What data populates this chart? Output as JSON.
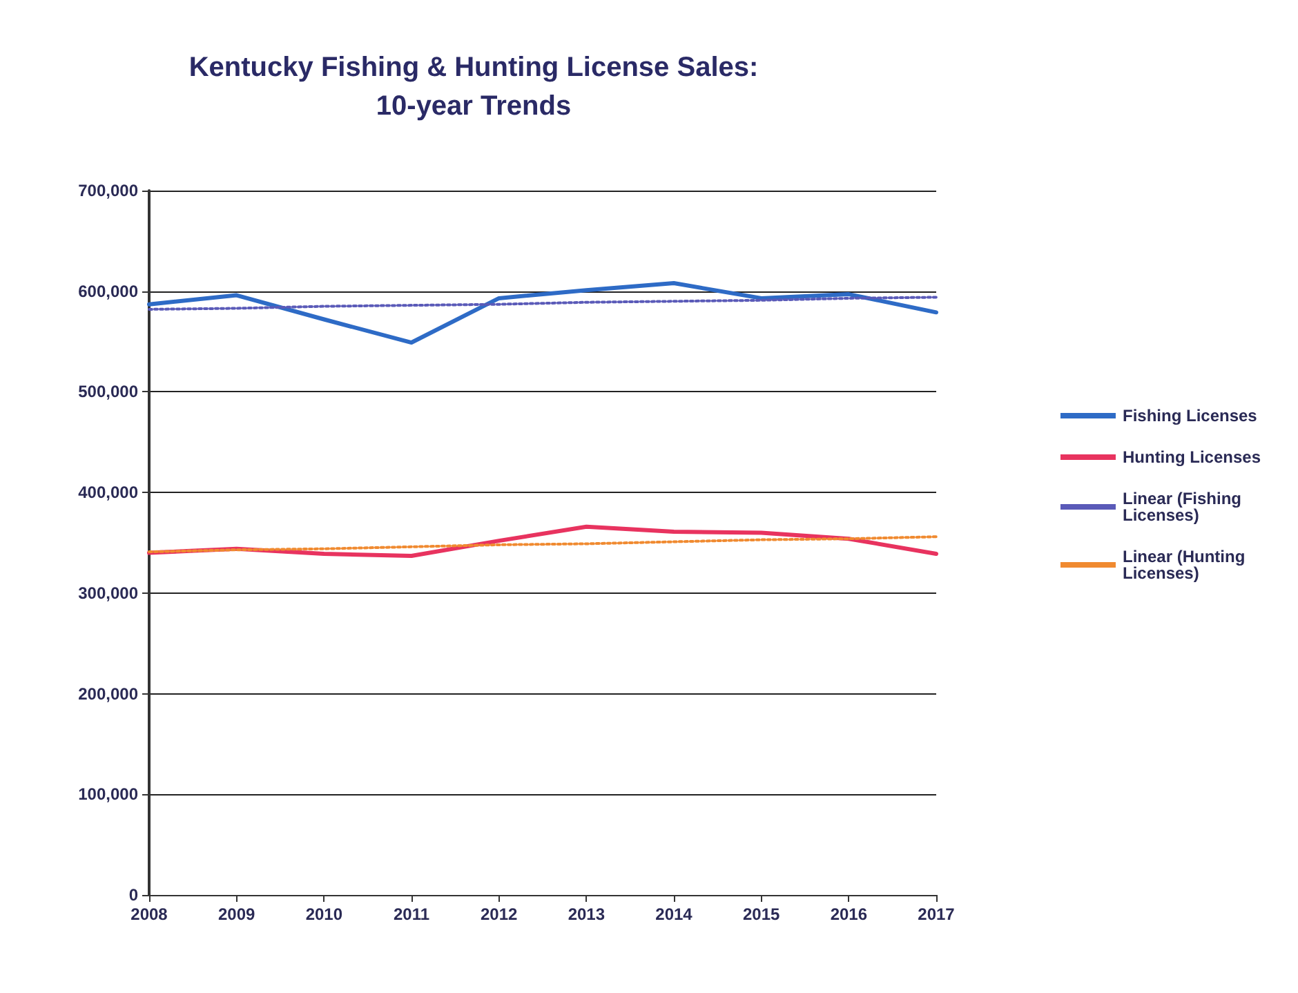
{
  "chart_data": {
    "type": "line",
    "title": "Kentucky Fishing & Hunting License Sales:\n10-year Trends",
    "x": [
      2008,
      2009,
      2010,
      2011,
      2012,
      2013,
      2014,
      2015,
      2016,
      2017
    ],
    "series": [
      {
        "name": "Fishing Licenses",
        "color": "#2e6bc6",
        "values": [
          587000,
          596000,
          572000,
          549000,
          593000,
          601000,
          608000,
          593000,
          597000,
          579000
        ]
      },
      {
        "name": "Hunting Licenses",
        "color": "#e8335f",
        "values": [
          340000,
          344000,
          339000,
          337000,
          352000,
          366000,
          361000,
          360000,
          354000,
          339000
        ]
      },
      {
        "name": "Linear (Fishing Licenses)",
        "color": "#5a5ab8",
        "line_style": "dotted",
        "values": [
          582000,
          583000,
          585000,
          586000,
          587000,
          589000,
          590000,
          591000,
          593000,
          594000
        ]
      },
      {
        "name": "Linear (Hunting Licenses)",
        "color": "#f08a30",
        "line_style": "dotted",
        "values": [
          341000,
          343000,
          344000,
          346000,
          348000,
          349000,
          351000,
          353000,
          354000,
          356000
        ]
      }
    ],
    "xlim": [
      2008,
      2017
    ],
    "xticks": [
      2008,
      2009,
      2010,
      2011,
      2012,
      2013,
      2014,
      2015,
      2016,
      2017
    ],
    "ylim": [
      0,
      700000
    ],
    "yticks": [
      0,
      {
        "value": 100000,
        "label": "100,000"
      },
      {
        "value": 200000,
        "label": "200,000"
      },
      {
        "value": 300000,
        "label": "300,000"
      },
      {
        "value": 400000,
        "label": "400,000"
      },
      {
        "value": 500000,
        "label": "500,000"
      },
      {
        "value": 600000,
        "label": "600,000"
      },
      {
        "value": 700000,
        "label": "700,000"
      }
    ],
    "grid": "y",
    "legend": "right",
    "marker": "none",
    "line_style": "solid"
  }
}
